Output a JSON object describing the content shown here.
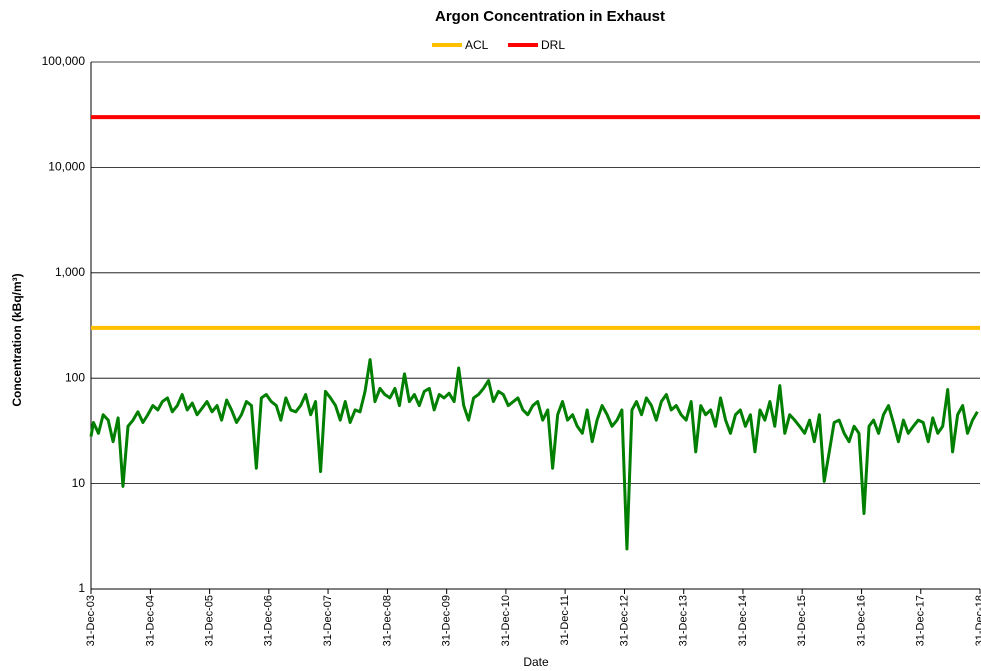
{
  "chart_data": {
    "type": "line",
    "title": "Argon Concentration in Exhaust",
    "x_label": "Date",
    "y_label": "Concentration (kBq/m³)",
    "y_scale": "log",
    "grid": true,
    "legend": "top",
    "ylim": [
      1,
      100000
    ],
    "yticks": [
      1,
      10,
      100,
      {
        "value": 1000,
        "label": "1,000"
      },
      {
        "value": 10000,
        "label": "10,000"
      },
      {
        "value": 100000,
        "label": "100,000"
      }
    ],
    "xlim": [
      "2003-12-31",
      "2018-12-31"
    ],
    "xticks": [
      {
        "value": "2003-12-31",
        "label": "31-Dec-03"
      },
      {
        "value": "2004-12-31",
        "label": "31-Dec-04"
      },
      {
        "value": "2005-12-31",
        "label": "31-Dec-05"
      },
      {
        "value": "2006-12-31",
        "label": "31-Dec-06"
      },
      {
        "value": "2007-12-31",
        "label": "31-Dec-07"
      },
      {
        "value": "2008-12-31",
        "label": "31-Dec-08"
      },
      {
        "value": "2009-12-31",
        "label": "31-Dec-09"
      },
      {
        "value": "2010-12-31",
        "label": "31-Dec-10"
      },
      {
        "value": "2011-12-31",
        "label": "31-Dec-11"
      },
      {
        "value": "2012-12-31",
        "label": "31-Dec-12"
      },
      {
        "value": "2013-12-31",
        "label": "31-Dec-13"
      },
      {
        "value": "2014-12-31",
        "label": "31-Dec-14"
      },
      {
        "value": "2015-12-31",
        "label": "31-Dec-15"
      },
      {
        "value": "2016-12-31",
        "label": "31-Dec-16"
      },
      {
        "value": "2017-12-31",
        "label": "31-Dec-17"
      },
      {
        "value": "2018-12-31",
        "label": "31-Dec-18"
      }
    ],
    "reference_lines": [
      {
        "name": "ACL",
        "color": "#ffc000",
        "value": 300
      },
      {
        "name": "DRL",
        "color": "#ff0000",
        "value": 30000
      }
    ],
    "x": [
      "2003-12-31",
      "2004-01-15",
      "2004-02-15",
      "2004-03-15",
      "2004-04-15",
      "2004-05-15",
      "2004-06-15",
      "2004-07-15",
      "2004-08-15",
      "2004-09-15",
      "2004-10-15",
      "2004-11-15",
      "2004-12-15",
      "2005-01-15",
      "2005-02-15",
      "2005-03-15",
      "2005-04-15",
      "2005-05-15",
      "2005-06-15",
      "2005-07-15",
      "2005-08-15",
      "2005-09-15",
      "2005-10-15",
      "2005-11-15",
      "2005-12-15",
      "2006-01-15",
      "2006-02-15",
      "2006-03-15",
      "2006-04-15",
      "2006-05-15",
      "2006-06-15",
      "2006-07-15",
      "2006-08-15",
      "2006-09-15",
      "2006-10-15",
      "2006-11-15",
      "2006-12-15",
      "2007-01-15",
      "2007-02-15",
      "2007-03-15",
      "2007-04-15",
      "2007-05-15",
      "2007-06-15",
      "2007-07-15",
      "2007-08-15",
      "2007-09-15",
      "2007-10-15",
      "2007-11-15",
      "2007-12-15",
      "2008-01-15",
      "2008-02-15",
      "2008-03-15",
      "2008-04-15",
      "2008-05-15",
      "2008-06-15",
      "2008-07-15",
      "2008-08-15",
      "2008-09-15",
      "2008-10-15",
      "2008-11-15",
      "2008-12-15",
      "2009-01-15",
      "2009-02-15",
      "2009-03-15",
      "2009-04-15",
      "2009-05-15",
      "2009-06-15",
      "2009-07-15",
      "2009-08-15",
      "2009-09-15",
      "2009-10-15",
      "2009-11-15",
      "2009-12-15",
      "2010-01-15",
      "2010-02-15",
      "2010-03-15",
      "2010-04-15",
      "2010-05-15",
      "2010-06-15",
      "2010-07-15",
      "2010-08-15",
      "2010-09-15",
      "2010-10-15",
      "2010-11-15",
      "2010-12-15",
      "2011-01-15",
      "2011-02-15",
      "2011-03-15",
      "2011-04-15",
      "2011-05-15",
      "2011-06-15",
      "2011-07-15",
      "2011-08-15",
      "2011-09-15",
      "2011-10-15",
      "2011-11-15",
      "2011-12-15",
      "2012-01-15",
      "2012-02-15",
      "2012-03-15",
      "2012-04-15",
      "2012-05-15",
      "2012-06-15",
      "2012-07-15",
      "2012-08-15",
      "2012-09-15",
      "2012-10-15",
      "2012-11-15",
      "2012-12-15",
      "2013-01-15",
      "2013-02-15",
      "2013-03-15",
      "2013-04-15",
      "2013-05-15",
      "2013-06-15",
      "2013-07-15",
      "2013-08-15",
      "2013-09-15",
      "2013-10-15",
      "2013-11-15",
      "2013-12-15",
      "2014-01-15",
      "2014-02-15",
      "2014-03-15",
      "2014-04-15",
      "2014-05-15",
      "2014-06-15",
      "2014-07-15",
      "2014-08-15",
      "2014-09-15",
      "2014-10-15",
      "2014-11-15",
      "2014-12-15",
      "2015-01-15",
      "2015-02-15",
      "2015-03-15",
      "2015-04-15",
      "2015-05-15",
      "2015-06-15",
      "2015-07-15",
      "2015-08-15",
      "2015-09-15",
      "2015-10-15",
      "2015-11-15",
      "2015-12-15",
      "2016-01-15",
      "2016-02-15",
      "2016-03-15",
      "2016-04-15",
      "2016-05-15",
      "2016-06-15",
      "2016-07-15",
      "2016-08-15",
      "2016-09-15",
      "2016-10-15",
      "2016-11-15",
      "2016-12-15",
      "2017-01-15",
      "2017-02-15",
      "2017-03-15",
      "2017-04-15",
      "2017-05-15",
      "2017-06-15",
      "2017-07-15",
      "2017-08-15",
      "2017-09-15",
      "2017-10-15",
      "2017-11-15",
      "2017-12-15",
      "2018-01-15",
      "2018-02-15",
      "2018-03-15",
      "2018-04-15",
      "2018-05-15",
      "2018-06-15",
      "2018-07-15",
      "2018-08-15",
      "2018-09-15",
      "2018-10-15",
      "2018-11-15",
      "2018-12-15"
    ],
    "series": [
      {
        "color": "#007f00",
        "values": [
          28,
          38,
          30,
          45,
          40,
          25,
          42,
          9.4,
          35,
          40,
          48,
          38,
          45,
          55,
          50,
          60,
          65,
          48,
          55,
          70,
          50,
          58,
          45,
          52,
          60,
          48,
          55,
          40,
          62,
          50,
          38,
          45,
          60,
          55,
          14,
          65,
          70,
          60,
          55,
          40,
          65,
          50,
          48,
          55,
          70,
          45,
          60,
          13,
          75,
          65,
          55,
          40,
          60,
          38,
          50,
          48,
          75,
          150,
          60,
          80,
          70,
          65,
          80,
          55,
          110,
          60,
          70,
          55,
          75,
          80,
          50,
          70,
          65,
          72,
          60,
          125,
          55,
          40,
          65,
          70,
          80,
          95,
          60,
          75,
          70,
          55,
          60,
          65,
          50,
          45,
          55,
          60,
          40,
          50,
          14,
          45,
          60,
          40,
          45,
          35,
          30,
          50,
          25,
          40,
          55,
          45,
          35,
          40,
          50,
          2.4,
          50,
          60,
          45,
          65,
          55,
          40,
          60,
          70,
          50,
          55,
          45,
          40,
          60,
          20,
          55,
          45,
          50,
          35,
          65,
          40,
          30,
          45,
          50,
          35,
          45,
          20,
          50,
          40,
          60,
          35,
          85,
          30,
          45,
          40,
          35,
          30,
          40,
          25,
          45,
          10.5,
          20,
          38,
          40,
          30,
          25,
          35,
          30,
          5.2,
          35,
          40,
          30,
          45,
          55,
          38,
          25,
          40,
          30,
          35,
          40,
          38,
          25,
          42,
          30,
          35,
          78,
          20,
          45,
          55,
          30,
          40,
          48
        ]
      }
    ]
  }
}
